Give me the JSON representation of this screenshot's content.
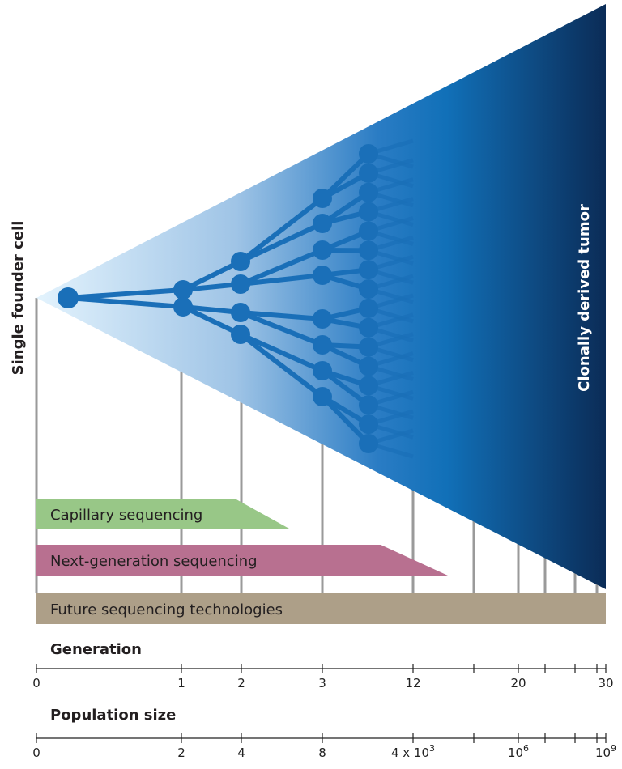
{
  "labels": {
    "founder": "Single founder cell",
    "tumor": "Clonally derived tumor"
  },
  "technologies": [
    "Capillary sequencing",
    "Next-generation sequencing",
    "Future sequencing technologies"
  ],
  "axes": [
    {
      "title": "Generation",
      "ticks": [
        "0",
        "1",
        "2",
        "3",
        "12",
        "20",
        "30"
      ]
    },
    {
      "title": "Population size",
      "ticks": [
        "0",
        "2",
        "4",
        "8",
        {
          "base": "4 x 10",
          "exp": "3"
        },
        {
          "base": "10",
          "exp": "6"
        },
        {
          "base": "10",
          "exp": "9"
        }
      ]
    }
  ]
}
